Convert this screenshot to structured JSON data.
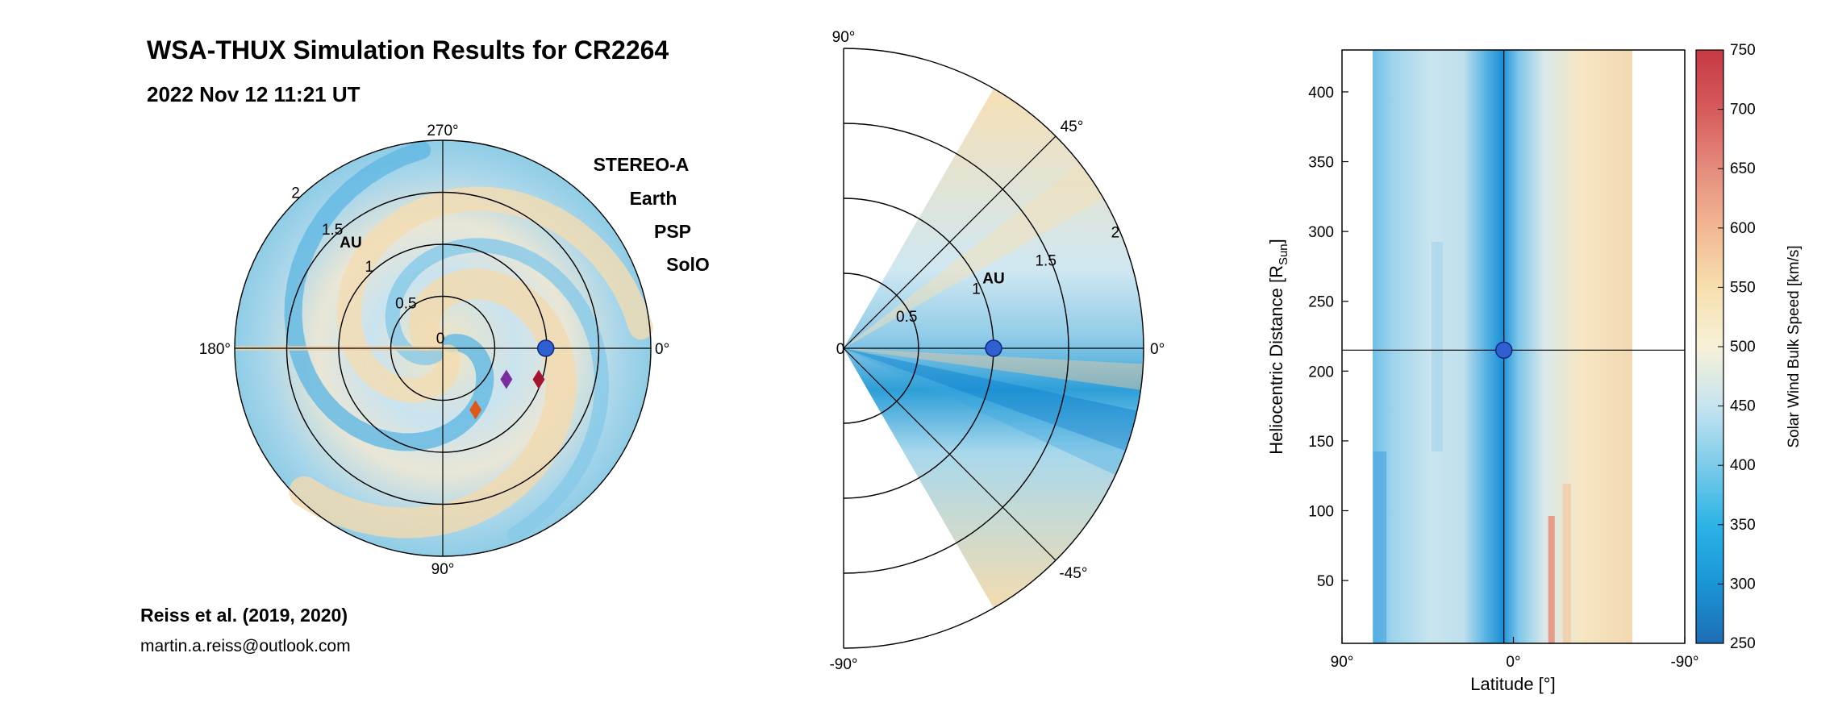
{
  "title": "WSA-THUX Simulation Results for CR2264",
  "datetime": "2022 Nov 12 11:21 UT",
  "reference": "Reiss et al. (2019, 2020)",
  "contact": "martin.a.reiss@outlook.com",
  "colors": {
    "stereo_a": "#a3162e",
    "earth": "#1a73c4",
    "psp": "#e0571a",
    "solo": "#7b2d9e",
    "marker_earth_fill": "#2f5fd0",
    "colormap_low": "#1a73c4",
    "colormap_mid": "#f7ecc6",
    "colormap_high": "#c9343a"
  },
  "chart_data": [
    {
      "type": "polar-heatmap",
      "description_of_view": "equatorial plane",
      "angular_ticks": [
        "270°",
        "0°",
        "90°",
        "180°"
      ],
      "radial_ticks": [
        "0",
        "0.5",
        "1",
        "1.5",
        "2"
      ],
      "radial_unit": "AU",
      "rlim": [
        0,
        2
      ],
      "legend": [
        {
          "name": "STEREO-A",
          "color": "#a3162e"
        },
        {
          "name": "Earth",
          "color": "#1a73c4"
        },
        {
          "name": "PSP",
          "color": "#e0571a"
        },
        {
          "name": "SolO",
          "color": "#7b2d9e"
        }
      ],
      "markers": [
        {
          "name": "Earth",
          "r": 0.99,
          "angle_deg": 0,
          "shape": "circle"
        },
        {
          "name": "STEREO-A",
          "r": 0.97,
          "angle_deg": 18,
          "shape": "diamond"
        },
        {
          "name": "SolO",
          "r": 0.68,
          "angle_deg": 26,
          "shape": "diamond"
        },
        {
          "name": "PSP",
          "r": 0.67,
          "angle_deg": 62,
          "shape": "diamond"
        }
      ]
    },
    {
      "type": "polar-heatmap",
      "description_of_view": "meridional plane",
      "angular_ticks": [
        "90°",
        "45°",
        "0°",
        "-45°",
        "-90°"
      ],
      "radial_ticks": [
        "0",
        "0.5",
        "1",
        "1.5",
        "2"
      ],
      "radial_unit": "AU",
      "rlim": [
        0,
        2
      ],
      "markers": [
        {
          "name": "Earth",
          "r": 1.0,
          "lat_deg": 0,
          "shape": "circle"
        }
      ]
    },
    {
      "type": "heatmap",
      "xlabel": "Latitude [°]",
      "ylabel_main": "Heliocentric Distance [R",
      "ylabel_sub": "Sun",
      "ylabel_end": "]",
      "xticks": [
        "90°",
        "0°",
        "-90°"
      ],
      "yticks": [
        50,
        100,
        150,
        200,
        250,
        300,
        350,
        400
      ],
      "ylim": [
        5,
        430
      ],
      "marker": {
        "name": "Earth",
        "lat_deg": 5,
        "r": 215
      },
      "colorbar": {
        "label": "Solar Wind Bulk Speed [km/s]",
        "ticks": [
          250,
          300,
          350,
          400,
          450,
          500,
          550,
          600,
          650,
          700,
          750
        ],
        "range": [
          250,
          750
        ]
      }
    }
  ]
}
